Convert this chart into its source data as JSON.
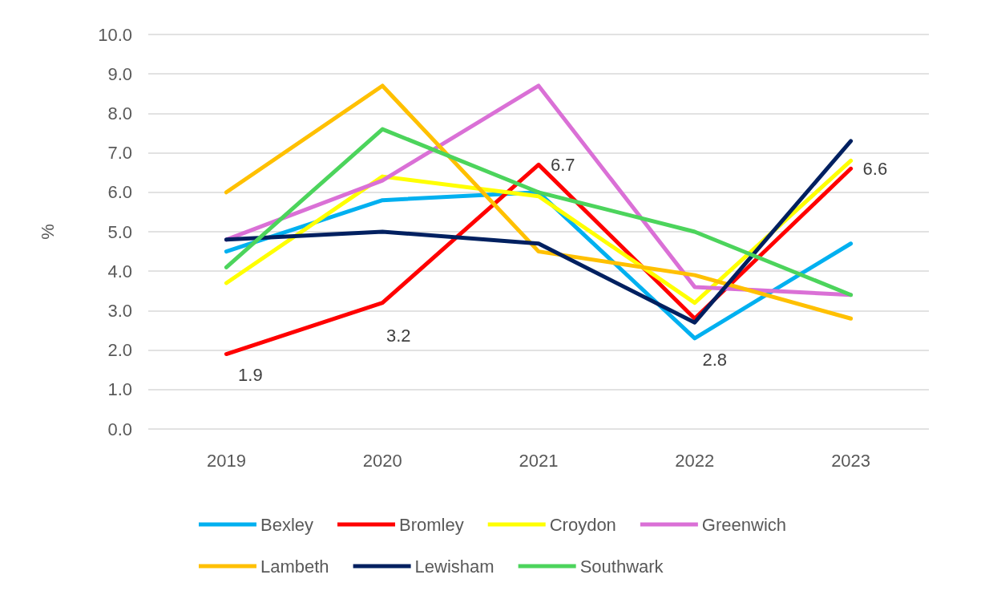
{
  "chart_data": {
    "type": "line",
    "ylabel": "%",
    "categories": [
      "2019",
      "2020",
      "2021",
      "2022",
      "2023"
    ],
    "series": [
      {
        "name": "Bexley",
        "color": "#00b0f0",
        "values": [
          4.5,
          5.8,
          6.0,
          2.3,
          4.7
        ]
      },
      {
        "name": "Bromley",
        "color": "#ff0000",
        "values": [
          1.9,
          3.2,
          6.7,
          2.8,
          6.6
        ],
        "value_labels": [
          "1.9",
          "3.2",
          "6.7",
          "2.8",
          "6.6"
        ]
      },
      {
        "name": "Croydon",
        "color": "#ffff00",
        "values": [
          3.7,
          6.4,
          5.9,
          3.2,
          6.8
        ]
      },
      {
        "name": "Greenwich",
        "color": "#da70d6",
        "values": [
          4.8,
          6.3,
          8.7,
          3.6,
          3.4
        ]
      },
      {
        "name": "Lambeth",
        "color": "#ffc000",
        "values": [
          6.0,
          8.7,
          4.5,
          3.9,
          2.8
        ]
      },
      {
        "name": "Lewisham",
        "color": "#002060",
        "values": [
          4.8,
          5.0,
          4.7,
          2.7,
          7.3
        ]
      },
      {
        "name": "Southwark",
        "color": "#4cd45c",
        "values": [
          4.1,
          7.6,
          6.0,
          5.0,
          3.4
        ]
      }
    ],
    "ylim": [
      0,
      10
    ],
    "yticks": [
      {
        "value": 0,
        "label": "0.0"
      },
      {
        "value": 1,
        "label": "1.0"
      },
      {
        "value": 2,
        "label": "2.0"
      },
      {
        "value": 3,
        "label": "3.0"
      },
      {
        "value": 4,
        "label": "4.0"
      },
      {
        "value": 5,
        "label": "5.0"
      },
      {
        "value": 6,
        "label": "6.0"
      },
      {
        "value": 7,
        "label": "7.0"
      },
      {
        "value": 8,
        "label": "8.0"
      },
      {
        "value": 9,
        "label": "9.0"
      },
      {
        "value": 10,
        "label": "10.0"
      }
    ],
    "grid": "y",
    "legend": "bottom",
    "marker": "none",
    "line_style": "solid"
  }
}
